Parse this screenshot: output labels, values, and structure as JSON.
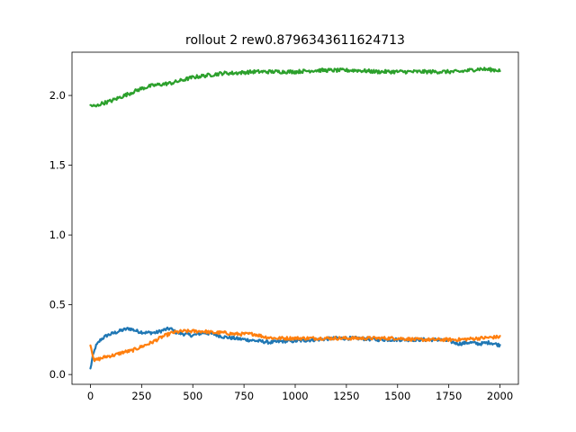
{
  "chart_data": {
    "type": "line",
    "title": "rollout 2 rew0.8796343611624713",
    "xlabel": "",
    "ylabel": "",
    "xlim": [
      -90,
      2090
    ],
    "ylim": [
      -0.07,
      2.31
    ],
    "xticks": [
      0,
      250,
      500,
      750,
      1000,
      1250,
      1500,
      1750,
      2000
    ],
    "xtick_labels": [
      "0",
      "250",
      "500",
      "750",
      "1000",
      "1250",
      "1500",
      "1750",
      "2000"
    ],
    "yticks": [
      0.0,
      0.5,
      1.0,
      1.5,
      2.0
    ],
    "ytick_labels": [
      "0.0",
      "0.5",
      "1.0",
      "1.5",
      "2.0"
    ],
    "grid": false,
    "legend": "none",
    "series": [
      {
        "color": "#1f77b4",
        "noise": 0.012,
        "x": [
          0,
          10,
          25,
          50,
          80,
          120,
          160,
          190,
          230,
          270,
          320,
          360,
          390,
          420,
          460,
          500,
          550,
          600,
          650,
          700,
          760,
          820,
          880,
          950,
          1000,
          1100,
          1200,
          1300,
          1400,
          1500,
          1600,
          1700,
          1750,
          1800,
          1850,
          1900,
          1950,
          2000
        ],
        "y": [
          0.04,
          0.12,
          0.2,
          0.25,
          0.28,
          0.3,
          0.32,
          0.33,
          0.31,
          0.3,
          0.3,
          0.32,
          0.33,
          0.3,
          0.29,
          0.28,
          0.3,
          0.29,
          0.27,
          0.26,
          0.25,
          0.24,
          0.23,
          0.24,
          0.24,
          0.25,
          0.26,
          0.26,
          0.25,
          0.25,
          0.25,
          0.25,
          0.24,
          0.22,
          0.23,
          0.22,
          0.23,
          0.21
        ]
      },
      {
        "color": "#ff7f0e",
        "noise": 0.012,
        "x": [
          0,
          8,
          20,
          40,
          80,
          120,
          160,
          200,
          250,
          300,
          350,
          400,
          450,
          500,
          550,
          600,
          650,
          700,
          750,
          800,
          850,
          900,
          1000,
          1100,
          1200,
          1300,
          1400,
          1500,
          1600,
          1700,
          1800,
          1900,
          2000
        ],
        "y": [
          0.22,
          0.16,
          0.1,
          0.11,
          0.13,
          0.14,
          0.16,
          0.17,
          0.2,
          0.23,
          0.27,
          0.3,
          0.31,
          0.31,
          0.31,
          0.3,
          0.3,
          0.29,
          0.29,
          0.29,
          0.27,
          0.26,
          0.26,
          0.26,
          0.26,
          0.26,
          0.26,
          0.26,
          0.25,
          0.25,
          0.25,
          0.26,
          0.27
        ]
      },
      {
        "color": "#2ca02c",
        "noise": 0.013,
        "x": [
          0,
          25,
          50,
          100,
          150,
          200,
          250,
          300,
          350,
          400,
          450,
          500,
          550,
          600,
          650,
          700,
          800,
          900,
          1000,
          1100,
          1200,
          1300,
          1400,
          1500,
          1600,
          1700,
          1800,
          1900,
          2000
        ],
        "y": [
          1.93,
          1.92,
          1.94,
          1.96,
          1.99,
          2.02,
          2.05,
          2.07,
          2.08,
          2.09,
          2.11,
          2.13,
          2.14,
          2.15,
          2.16,
          2.16,
          2.17,
          2.17,
          2.17,
          2.18,
          2.18,
          2.18,
          2.17,
          2.17,
          2.17,
          2.17,
          2.17,
          2.19,
          2.18
        ]
      }
    ]
  }
}
